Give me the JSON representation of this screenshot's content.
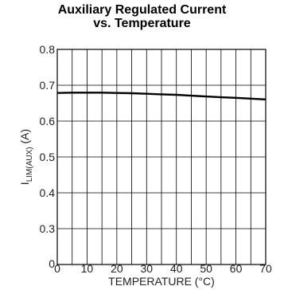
{
  "chart_data": {
    "type": "line",
    "title_line1": "Auxiliary Regulated Current",
    "title_line2": "vs. Temperature",
    "xlabel": "TEMPERATURE (°C)",
    "ylabel": {
      "main": "I",
      "sub": "LIM(AUX)",
      "unit": " (A)"
    },
    "xlim": [
      0,
      70
    ],
    "ylim": [
      0,
      0.8
    ],
    "x_ticks": [
      "0",
      "10",
      "20",
      "30",
      "40",
      "50",
      "60",
      "70"
    ],
    "y_ticks": [
      "0",
      "0.3",
      "0.4",
      "0.5",
      "0.6",
      "0.7",
      "0.8"
    ],
    "grid": true,
    "series": [
      {
        "x": [
          0,
          5,
          10,
          15,
          20,
          25,
          30,
          35,
          40,
          45,
          50,
          55,
          60,
          65,
          70
        ],
        "values": [
          0.638,
          0.639,
          0.639,
          0.639,
          0.638,
          0.637,
          0.635,
          0.633,
          0.631,
          0.628,
          0.625,
          0.622,
          0.62,
          0.617,
          0.614
        ]
      }
    ]
  }
}
